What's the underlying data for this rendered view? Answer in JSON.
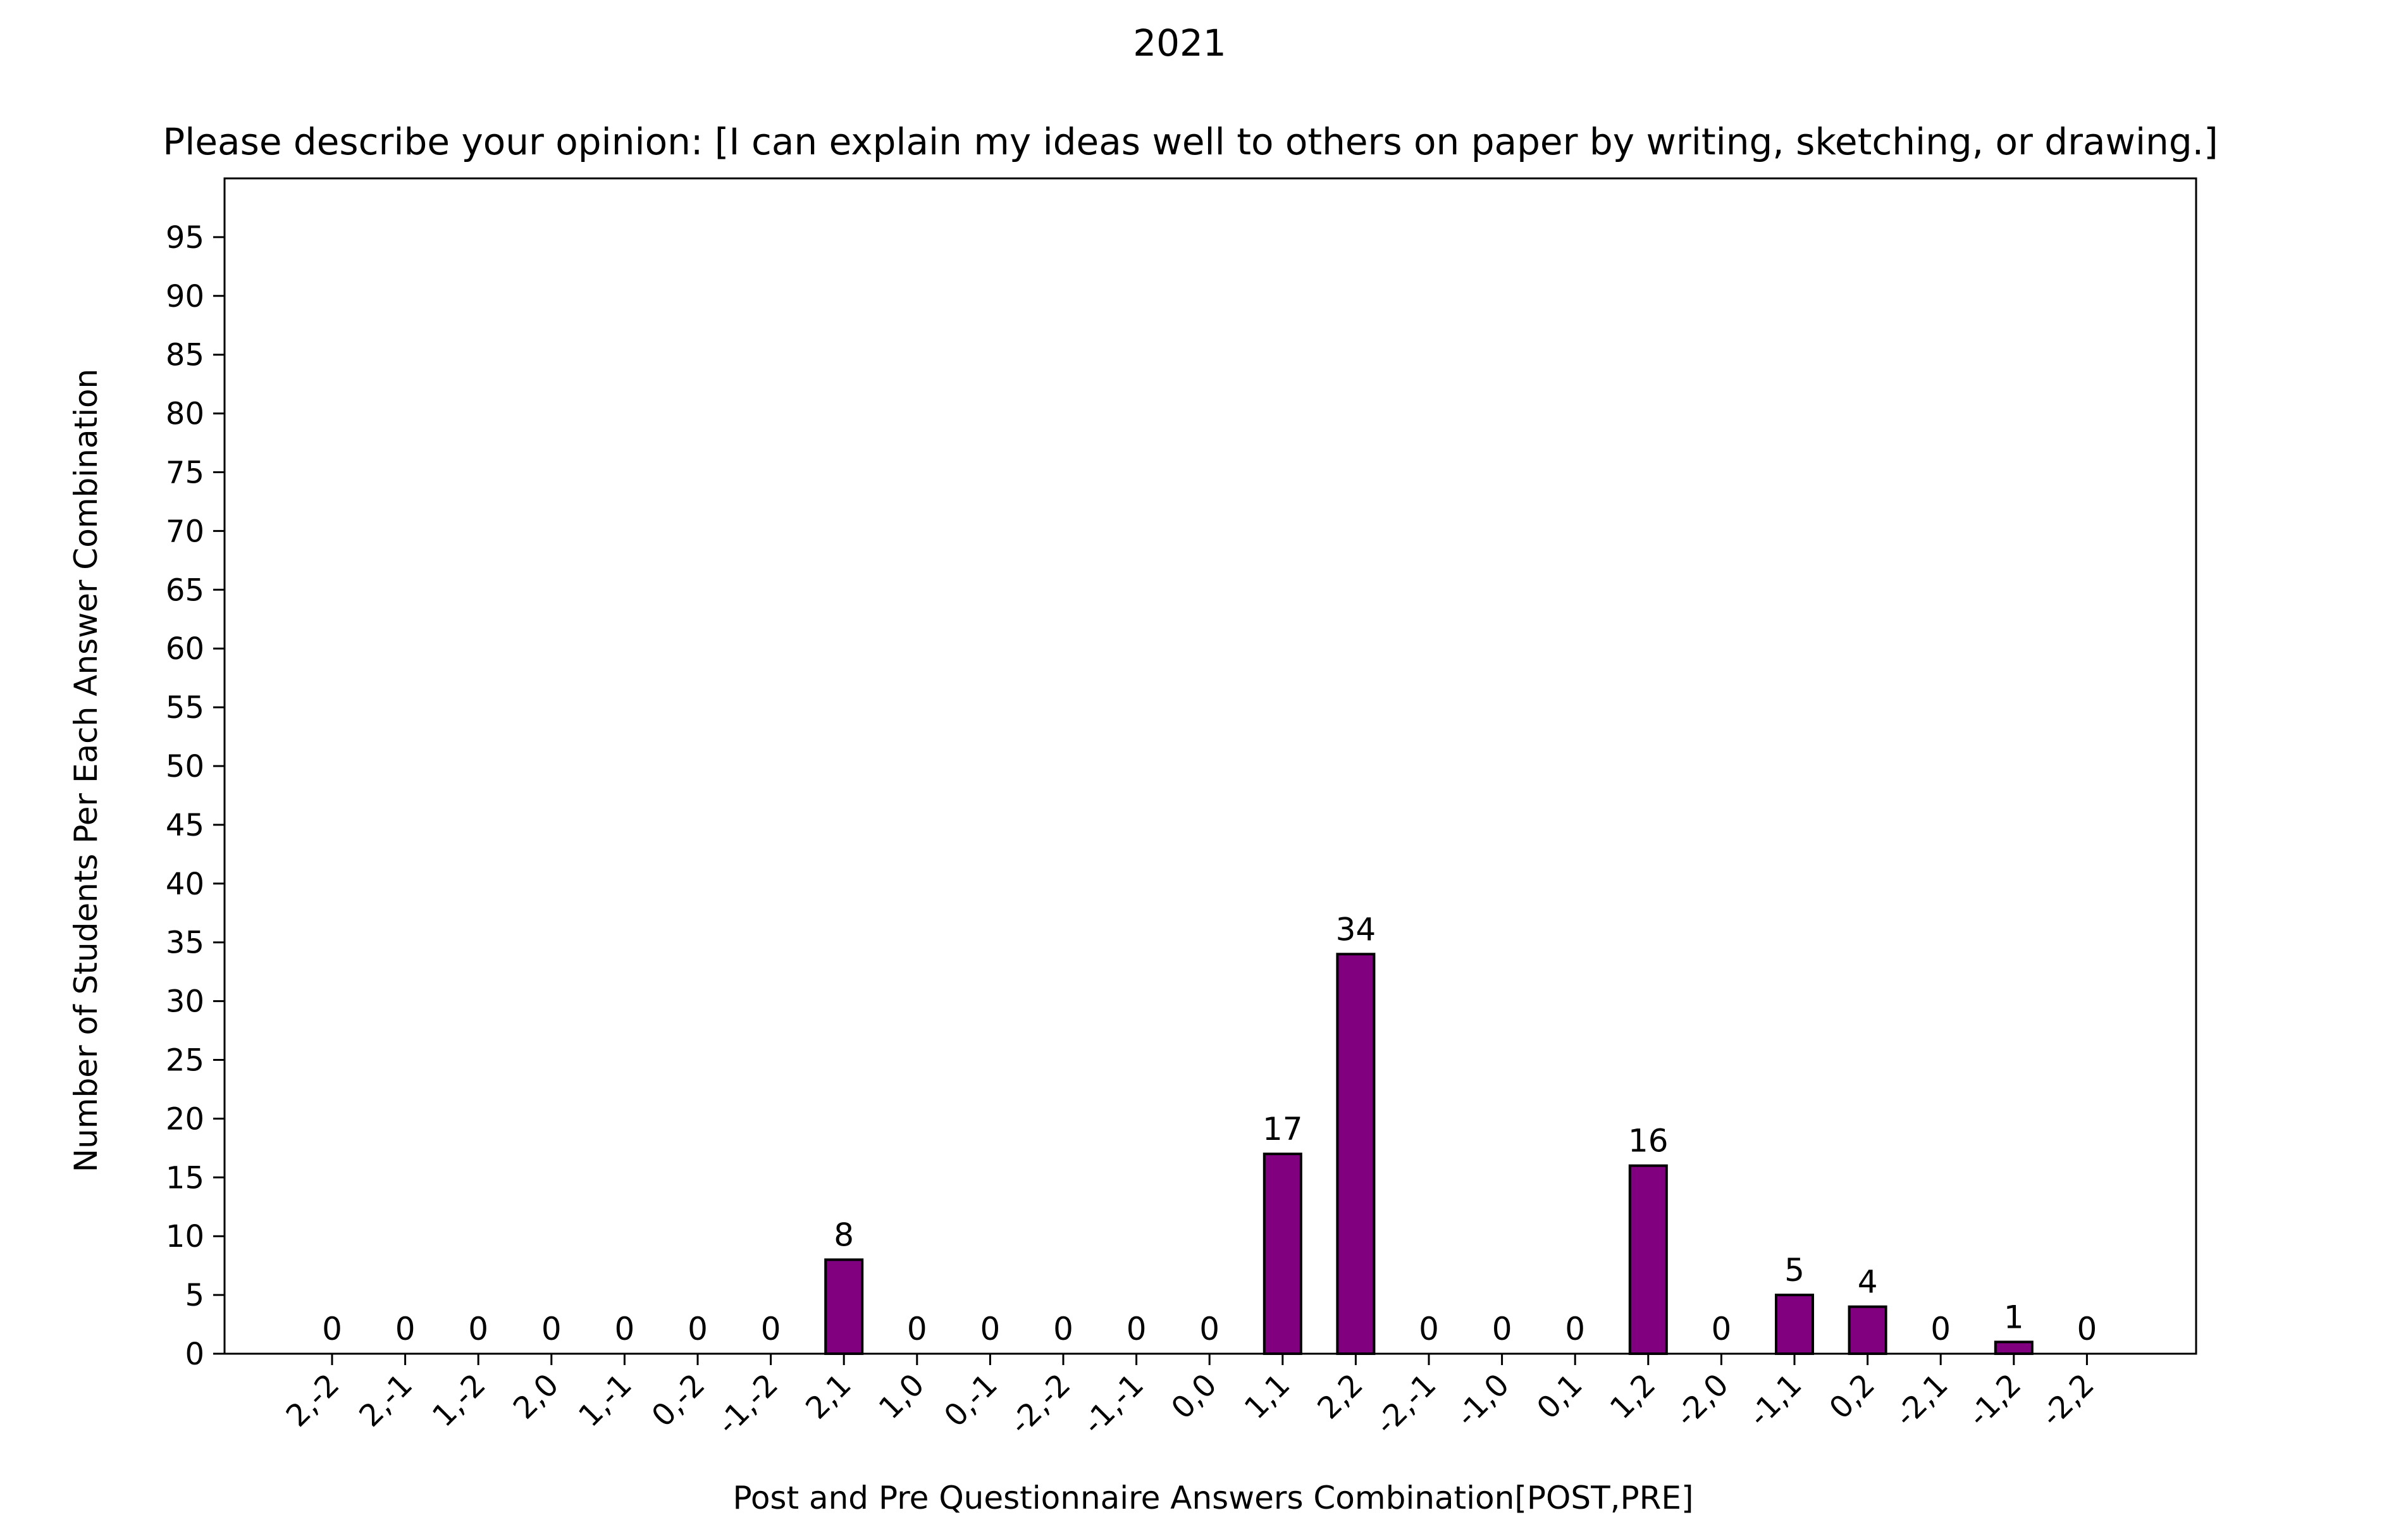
{
  "chart_data": {
    "type": "bar",
    "suptitle": "2021",
    "title": "Please describe your opinion: [I can explain my ideas well to others on paper by writing, sketching, or drawing.]",
    "xlabel": "Post and Pre Questionnaire Answers Combination[POST,PRE]",
    "ylabel": "Number of Students Per Each Answer Combination",
    "categories": [
      "2,-2",
      "2,-1",
      "1,-2",
      "2,0",
      "1,-1",
      "0,-2",
      "-1,-2",
      "2,1",
      "1,0",
      "0,-1",
      "-2,-2",
      "-1,-1",
      "0,0",
      "1,1",
      "2,2",
      "-2,-1",
      "-1,0",
      "0,1",
      "1,2",
      "-2,0",
      "-1,1",
      "0,2",
      "-2,1",
      "-1,2",
      "-2,2"
    ],
    "values": [
      0,
      0,
      0,
      0,
      0,
      0,
      0,
      8,
      0,
      0,
      0,
      0,
      0,
      17,
      34,
      0,
      0,
      0,
      16,
      0,
      5,
      4,
      0,
      1,
      0
    ],
    "ylim": [
      0,
      100
    ],
    "yticks": [
      0,
      5,
      10,
      15,
      20,
      25,
      30,
      35,
      40,
      45,
      50,
      55,
      60,
      65,
      70,
      75,
      80,
      85,
      90,
      95
    ],
    "bar_color": "#800080",
    "edge_color": "#000000",
    "grid": false
  }
}
